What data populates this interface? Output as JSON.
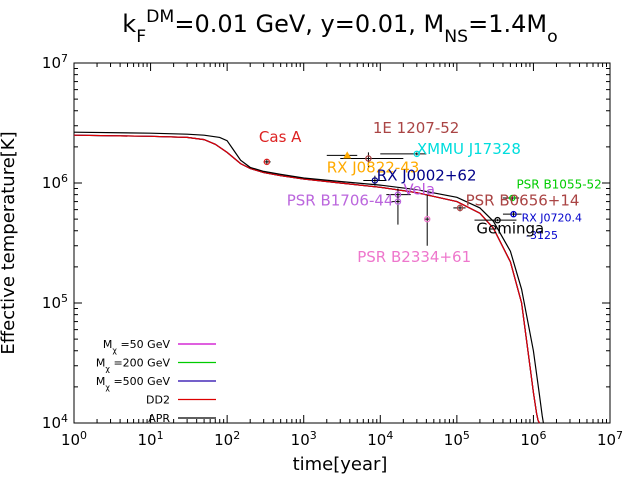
{
  "chart_data": {
    "type": "line",
    "title_parts": [
      {
        "text": "k",
        "style": "normal"
      },
      {
        "text": "F",
        "style": "sub"
      },
      {
        "text": "DM",
        "style": "sup"
      },
      {
        "text": "=0.01 GeV, y=0.01, M",
        "style": "normal"
      },
      {
        "text": "NS",
        "style": "sub"
      },
      {
        "text": "=1.4M",
        "style": "normal"
      },
      {
        "text": "o",
        "style": "sub"
      }
    ],
    "xlabel": "time[year]",
    "ylabel": "Effective temperature[K]",
    "x_scale": "log",
    "y_scale": "log",
    "xlim": [
      1,
      10000000
    ],
    "ylim": [
      10000,
      10000000
    ],
    "x_ticks": [
      {
        "value": 1,
        "base": "10",
        "exp": "0"
      },
      {
        "value": 10,
        "base": "10",
        "exp": "1"
      },
      {
        "value": 100,
        "base": "10",
        "exp": "2"
      },
      {
        "value": 1000,
        "base": "10",
        "exp": "3"
      },
      {
        "value": 10000,
        "base": "10",
        "exp": "4"
      },
      {
        "value": 100000,
        "base": "10",
        "exp": "5"
      },
      {
        "value": 1000000,
        "base": "10",
        "exp": "6"
      },
      {
        "value": 10000000,
        "base": "10",
        "exp": "7"
      }
    ],
    "y_ticks": [
      {
        "value": 10000,
        "base": "10",
        "exp": "4"
      },
      {
        "value": 100000,
        "base": "10",
        "exp": "5"
      },
      {
        "value": 1000000,
        "base": "10",
        "exp": "6"
      },
      {
        "value": 10000000,
        "base": "10",
        "exp": "7"
      }
    ],
    "legend_position": "bottom-left",
    "series": [
      {
        "name_parts": [
          {
            "text": "M",
            "style": "normal"
          },
          {
            "text": "χ",
            "style": "sub"
          },
          {
            "text": " =50 GeV",
            "style": "normal"
          }
        ],
        "color": "#cc00cc",
        "x": [
          1,
          10,
          30,
          50,
          70,
          100,
          150,
          200,
          300,
          500,
          1000,
          3000,
          10000,
          30000,
          100000,
          200000,
          300000,
          500000,
          700000,
          900000,
          1000000,
          1100000,
          1150000,
          1200000
        ],
        "y": [
          2500000,
          2450000,
          2400000,
          2300000,
          2100000,
          1800000,
          1450000,
          1320000,
          1220000,
          1150000,
          1080000,
          1000000,
          920000,
          830000,
          700000,
          560000,
          420000,
          220000,
          100000,
          30000,
          18000,
          12000,
          10500,
          10000
        ]
      },
      {
        "name_parts": [
          {
            "text": "M",
            "style": "normal"
          },
          {
            "text": "χ",
            "style": "sub"
          },
          {
            "text": " =200 GeV",
            "style": "normal"
          }
        ],
        "color": "#00cc00",
        "x": [
          1,
          10,
          30,
          50,
          70,
          100,
          150,
          200,
          300,
          500,
          1000,
          3000,
          10000,
          30000,
          100000,
          200000,
          300000,
          500000,
          700000,
          900000,
          1000000,
          1100000,
          1150000,
          1200000
        ],
        "y": [
          2500000,
          2450000,
          2400000,
          2300000,
          2100000,
          1800000,
          1450000,
          1320000,
          1220000,
          1150000,
          1080000,
          1000000,
          920000,
          830000,
          700000,
          560000,
          420000,
          220000,
          100000,
          30000,
          18000,
          12000,
          10500,
          10000
        ]
      },
      {
        "name_parts": [
          {
            "text": "M",
            "style": "normal"
          },
          {
            "text": "χ",
            "style": "sub"
          },
          {
            "text": " =500 GeV",
            "style": "normal"
          }
        ],
        "color": "#2200aa",
        "x": [
          1,
          10,
          30,
          50,
          70,
          100,
          150,
          200,
          300,
          500,
          1000,
          3000,
          10000,
          30000,
          100000,
          200000,
          300000,
          500000,
          700000,
          900000,
          1000000,
          1100000,
          1150000,
          1200000
        ],
        "y": [
          2500000,
          2450000,
          2400000,
          2300000,
          2100000,
          1800000,
          1450000,
          1320000,
          1220000,
          1150000,
          1080000,
          1000000,
          920000,
          830000,
          700000,
          560000,
          420000,
          220000,
          100000,
          30000,
          18000,
          12000,
          10500,
          10000
        ]
      },
      {
        "name_parts": [
          {
            "text": "DD2",
            "style": "normal"
          }
        ],
        "color": "#dd0000",
        "x": [
          1,
          10,
          30,
          50,
          70,
          100,
          150,
          200,
          300,
          500,
          1000,
          3000,
          10000,
          30000,
          100000,
          200000,
          300000,
          500000,
          700000,
          900000,
          1000000,
          1100000,
          1150000,
          1200000
        ],
        "y": [
          2500000,
          2450000,
          2400000,
          2300000,
          2100000,
          1800000,
          1450000,
          1320000,
          1220000,
          1150000,
          1080000,
          1000000,
          920000,
          830000,
          700000,
          560000,
          420000,
          220000,
          100000,
          30000,
          18000,
          12000,
          10500,
          10000
        ]
      },
      {
        "name_parts": [
          {
            "text": "APR",
            "style": "normal"
          }
        ],
        "color": "#000000",
        "x": [
          1,
          10,
          30,
          50,
          80,
          100,
          120,
          150,
          200,
          300,
          500,
          1000,
          3000,
          10000,
          30000,
          100000,
          200000,
          300000,
          500000,
          700000,
          1000000,
          1200000,
          1300000,
          1350000
        ],
        "y": [
          2650000,
          2600000,
          2550000,
          2500000,
          2400000,
          2250000,
          1900000,
          1550000,
          1350000,
          1250000,
          1180000,
          1100000,
          1030000,
          960000,
          880000,
          760000,
          620000,
          480000,
          270000,
          130000,
          40000,
          17000,
          11500,
          10000
        ]
      }
    ],
    "observations": [
      {
        "label": "Cas A",
        "color": "#dd2222",
        "marker": "circle",
        "x": 330,
        "y": 1500000,
        "xerr": [
          300,
          370
        ],
        "yerr": [
          1420000,
          1580000
        ],
        "label_at": [
          260,
          2200000
        ]
      },
      {
        "label": "1E 1207-52",
        "color": "#aa4444",
        "marker": "circle",
        "x": 7000,
        "y": 1600000,
        "xerr": [
          3000,
          20000
        ],
        "yerr": [
          1350000,
          1800000
        ],
        "label_at": [
          8000,
          2600000
        ]
      },
      {
        "label": "RX J0822-43",
        "color": "#ffaa00",
        "marker": "triangle",
        "x": 3700,
        "y": 1700000,
        "xerr": [
          2000,
          5000
        ],
        "yerr": [
          1650000,
          1750000
        ],
        "label_at": [
          2000,
          1220000
        ]
      },
      {
        "label": "XMMU J17328",
        "color": "#00dddd",
        "marker": "circle",
        "x": 30000,
        "y": 1750000,
        "xerr": [
          10000,
          40000
        ],
        "yerr": [
          1700000,
          1800000
        ],
        "label_at": [
          30000,
          1750000
        ]
      },
      {
        "label": "RX J0002+62",
        "color": "#000088",
        "marker": "circle",
        "x": 8500,
        "y": 1050000,
        "xerr": [
          6000,
          12000
        ],
        "yerr": [
          950000,
          1150000
        ],
        "label_at": [
          9000,
          1050000
        ]
      },
      {
        "label": "Vela",
        "color": "#bb55dd",
        "marker": "circle",
        "x": 17000,
        "y": 800000,
        "xerr": [
          12000,
          25000
        ],
        "yerr": [
          700000,
          900000
        ],
        "label_at": [
          20000,
          800000
        ]
      },
      {
        "label": "PSR B1706-44",
        "color": "#bb66dd",
        "marker": "circle",
        "x": 17000,
        "y": 700000,
        "xerr": [
          14000,
          18000
        ],
        "yerr": [
          450000,
          800000
        ],
        "label_at": [
          600,
          650000
        ]
      },
      {
        "label": "PSR B1055-52",
        "color": "#00cc00",
        "marker": "circle",
        "x": 530000,
        "y": 750000,
        "xerr": [
          400000,
          650000
        ],
        "yerr": [
          720000,
          780000
        ],
        "label_at": [
          600000,
          900000
        ]
      },
      {
        "label": "PSR B0656+14",
        "color": "#aa4444",
        "marker": "circle",
        "x": 110000,
        "y": 620000,
        "xerr": [
          90000,
          130000
        ],
        "yerr": [
          580000,
          660000
        ],
        "label_at": [
          130000,
          650000
        ]
      },
      {
        "label": "RX J0720.4",
        "color": "#0000cc",
        "marker": "circle",
        "x": 550000,
        "y": 550000,
        "xerr": [
          400000,
          700000
        ],
        "yerr": [
          520000,
          580000
        ],
        "label_at": [
          700000,
          480000
        ]
      },
      {
        "label": "-3125",
        "color": "#0000cc",
        "marker": "none",
        "x": 550000,
        "y": 550000,
        "xerr": [
          550000,
          550000
        ],
        "yerr": [
          550000,
          550000
        ],
        "label_at": [
          800000,
          340000
        ]
      },
      {
        "label": "Geminga",
        "color": "#000000",
        "marker": "circle",
        "x": 340000,
        "y": 490000,
        "xerr": [
          170000,
          600000
        ],
        "yerr": [
          480000,
          500000
        ],
        "label_at": [
          180000,
          380000
        ]
      },
      {
        "label": "PSR B2334+61",
        "color": "#ee77cc",
        "marker": "circle",
        "x": 41000,
        "y": 500000,
        "xerr": [
          38000,
          44000
        ],
        "yerr": [
          300000,
          800000
        ],
        "label_at": [
          5000,
          220000
        ]
      }
    ]
  }
}
